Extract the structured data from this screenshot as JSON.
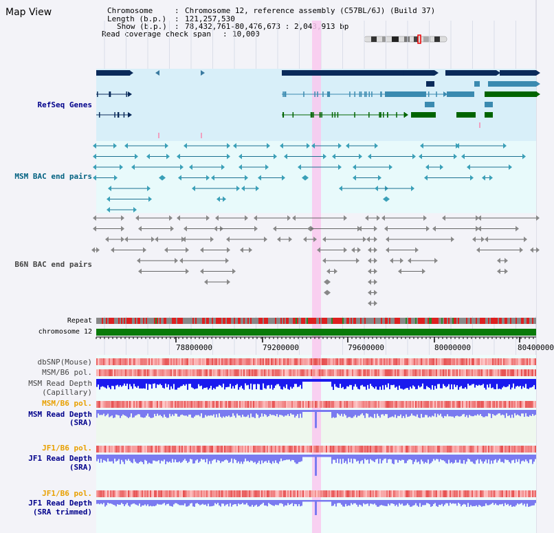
{
  "header": {
    "title": "Map View",
    "chromosome_label": "Chromosome",
    "chromosome_value": "Chromosome 12, reference assembly (C57BL/6J) (Build 37)",
    "length_label": "Length (b.p.)",
    "length_value": "121,257,530",
    "show_label": "Show (b.p.)",
    "show_value": "78,432,761-80,476,673 : 2,043,913 bp",
    "coverage_label": "Read coverage check span",
    "coverage_value": "10,000"
  },
  "tracks": {
    "refseq": "RefSeq Genes",
    "msm_bac": "MSM BAC end pairs",
    "b6n_bac": "B6N BAC end pairs",
    "repeat": "Repeat",
    "chromosome": "chromosome 12",
    "dbsnp": "dbSNP(Mouse)",
    "msm_b6_pol_1": "MSM/B6 pol.",
    "msm_read_cap_1": "MSM Read Depth",
    "msm_read_cap_2": "(Capillary)",
    "msm_b6_pol_2": "MSM/B6 pol.",
    "msm_read_sra_1": "MSM Read Depth",
    "msm_read_sra_2": "(SRA)",
    "jf1_b6_pol_1": "JF1/B6 pol.",
    "jf1_read_sra_1": "JF1 Read Depth",
    "jf1_read_sra_2": "(SRA)",
    "jf1_b6_pol_2": "JF1/B6 pol.",
    "jf1_trim_1": "JF1 Read Depth",
    "jf1_trim_2": "(SRA trimmed)"
  },
  "axis": {
    "ticks": [
      "78800000",
      "79200000",
      "79600000",
      "80000000",
      "80400000"
    ]
  },
  "colors": {
    "refseq_label": "#00008b",
    "msm_bac_label": "#006080",
    "b6n_label": "#333333",
    "pol_orange": "#e8a000",
    "read_blue": "#0000cc",
    "highlight": "#f7c8f0"
  }
}
